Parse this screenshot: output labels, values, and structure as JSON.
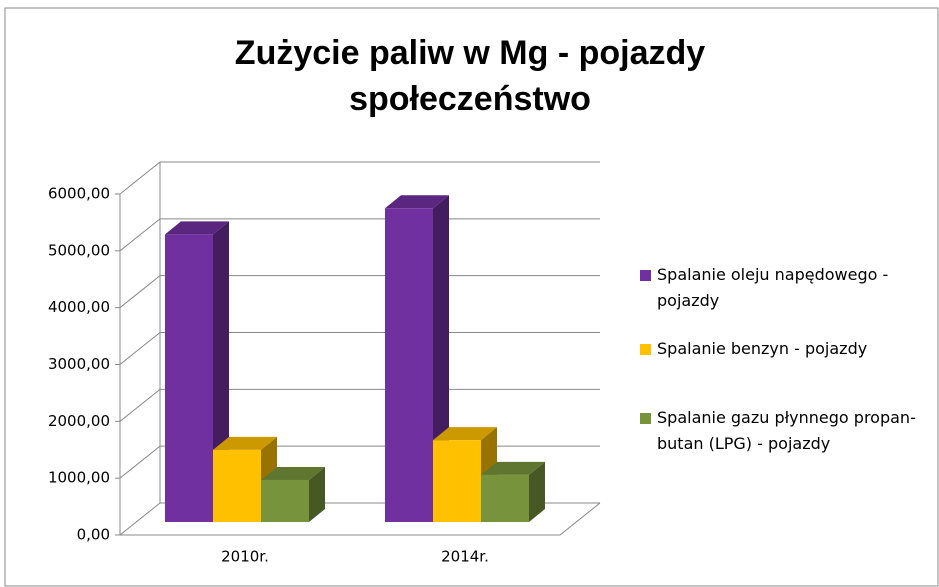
{
  "chart_data": {
    "type": "bar3d",
    "title": "Zużycie paliw  w Mg - pojazdy społeczeństwo",
    "categories": [
      "2010r.",
      "2014r."
    ],
    "series": [
      {
        "name": "Spalanie oleju napędowego - pojazdy",
        "color": "#7030a0",
        "values": [
          5060,
          5520
        ]
      },
      {
        "name": "Spalanie benzyn - pojazdy",
        "color": "#ffc000",
        "values": [
          1270,
          1440
        ]
      },
      {
        "name": "Spalanie gazu płynnego propan-butan (LPG) - pojazdy",
        "color": "#77933c",
        "values": [
          740,
          830
        ]
      }
    ],
    "ylim": [
      0,
      6000
    ],
    "yticks": [
      {
        "value": 0,
        "label": "0,00"
      },
      {
        "value": 1000,
        "label": "1000,00"
      },
      {
        "value": 2000,
        "label": "2000,00"
      },
      {
        "value": 3000,
        "label": "3000,00"
      },
      {
        "value": 4000,
        "label": "4000,00"
      },
      {
        "value": 5000,
        "label": "5000,00"
      },
      {
        "value": 6000,
        "label": "6000,00"
      }
    ],
    "grid": true,
    "legend": "right"
  }
}
